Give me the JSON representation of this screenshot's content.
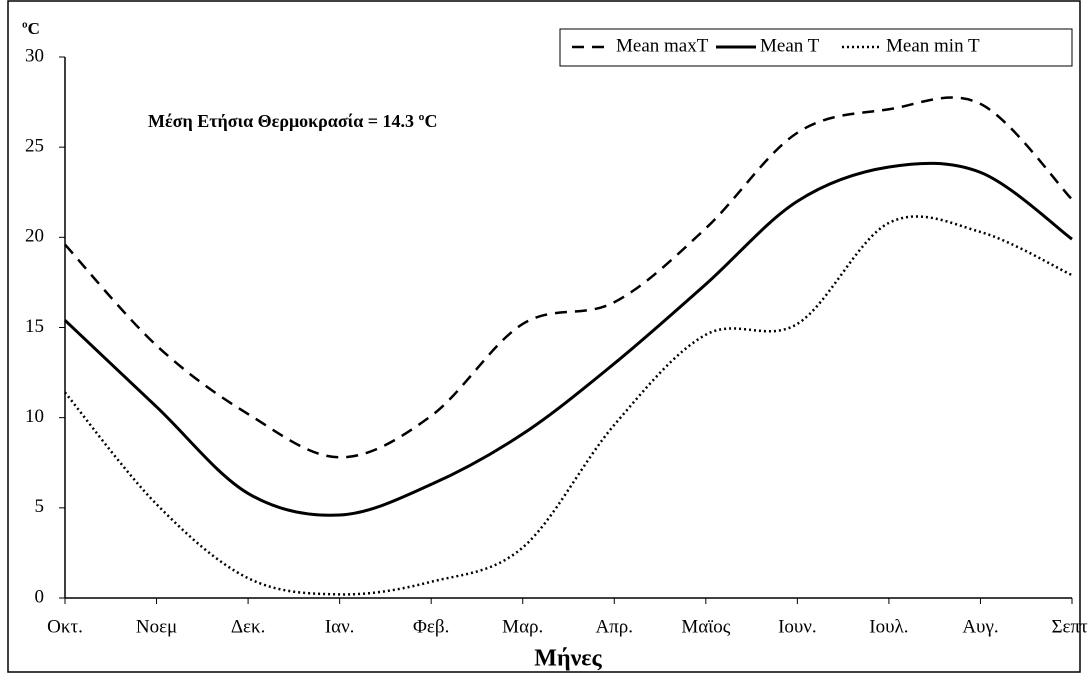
{
  "chart_data": {
    "type": "line",
    "y_label": "ºC",
    "x_label": "Μήνες",
    "annotation": "Μέση Ετήσια Θερμοκρασία = 14.3 ºC",
    "categories": [
      "Οκτ.",
      "Νοεμ",
      "Δεκ.",
      "Ιαν.",
      "Φεβ.",
      "Μαρ.",
      "Απρ.",
      "Μαϊος",
      "Ιουν.",
      "Ιουλ.",
      "Αυγ.",
      "Σεπτ."
    ],
    "series": [
      {
        "name": "Mean maxT",
        "color": "#000000",
        "dash": "dashed",
        "values": [
          19.6,
          14.0,
          10.2,
          7.8,
          10.1,
          15.2,
          16.4,
          20.5,
          25.8,
          27.1,
          27.4,
          22.1
        ]
      },
      {
        "name": "Mean T",
        "color": "#000000",
        "dash": "solid",
        "values": [
          15.4,
          10.6,
          5.8,
          4.6,
          6.3,
          9.1,
          13.0,
          17.4,
          22.0,
          23.9,
          23.6,
          19.9
        ]
      },
      {
        "name": "Mean min T",
        "color": "#000000",
        "dash": "dotted",
        "values": [
          11.4,
          5.2,
          1.1,
          0.2,
          0.9,
          2.8,
          9.6,
          14.6,
          15.2,
          20.8,
          20.3,
          17.9
        ]
      }
    ],
    "ylim": [
      0,
      30
    ],
    "yticks": [
      0,
      5,
      10,
      15,
      20,
      25,
      30
    ],
    "smooth": true,
    "grid": false,
    "legend": "top-right"
  }
}
